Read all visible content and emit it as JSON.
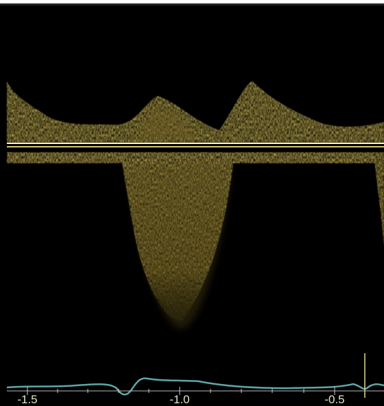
{
  "time_axis": {
    "ticks": [
      "-1.5",
      "-1.0",
      "-0.5"
    ]
  }
}
